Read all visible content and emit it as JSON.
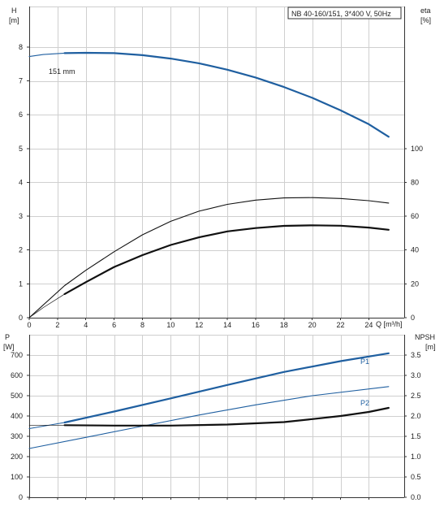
{
  "title_box": "NB 40-160/151, 3*400 V, 50Hz",
  "colors": {
    "blue": "#1f5fa0",
    "black": "#111111",
    "grid": "#cfcfcf"
  },
  "chart_data": [
    {
      "type": "line",
      "axes": {
        "y_left_label": [
          "H",
          "[m]"
        ],
        "y_right_label": [
          "eta",
          "[%]"
        ],
        "x_label": "Q [m³/h]",
        "x_ticks": [
          0,
          2,
          4,
          6,
          8,
          10,
          12,
          14,
          16,
          18,
          20,
          22,
          24
        ],
        "y_left_ticks": [
          0,
          1,
          2,
          3,
          4,
          5,
          6,
          7,
          8
        ],
        "y_right_ticks": [
          0,
          20,
          40,
          60,
          80,
          100
        ],
        "xlim": [
          0,
          26.5
        ],
        "ylim_left": [
          0,
          9.2
        ],
        "ylim_right": [
          0,
          184
        ]
      },
      "annotations": [
        {
          "text": "151 mm",
          "x": 1.5,
          "y": 7.78
        }
      ],
      "series": [
        {
          "id": "H",
          "axis": "left",
          "color": "blue",
          "style": "thick",
          "x": [
            2.5,
            4,
            6,
            8,
            10,
            12,
            14,
            16,
            18,
            20,
            22,
            24,
            25.4
          ],
          "y": [
            7.82,
            7.83,
            7.82,
            7.76,
            7.66,
            7.52,
            7.33,
            7.1,
            6.82,
            6.5,
            6.13,
            5.72,
            5.35
          ]
        },
        {
          "id": "H-extension",
          "axis": "left",
          "color": "blue",
          "style": "thin",
          "x": [
            0,
            1,
            2.5
          ],
          "y": [
            7.72,
            7.78,
            7.82
          ]
        },
        {
          "id": "eta-upper",
          "axis": "right",
          "color": "black",
          "style": "thin",
          "x": [
            0,
            2.5,
            4,
            6,
            8,
            10,
            12,
            14,
            16,
            18,
            20,
            22,
            24,
            25.4
          ],
          "y": [
            0,
            19,
            28,
            39,
            49,
            57,
            63,
            67,
            69.5,
            70.8,
            71,
            70.5,
            69.2,
            67.8
          ]
        },
        {
          "id": "eta-lower",
          "axis": "right",
          "color": "black",
          "style": "thick",
          "x": [
            2.5,
            4,
            6,
            8,
            10,
            12,
            14,
            16,
            18,
            20,
            22,
            24,
            25.4
          ],
          "y": [
            14,
            21,
            30,
            37,
            43,
            47.5,
            51,
            53,
            54.3,
            54.6,
            54.4,
            53.3,
            52
          ]
        },
        {
          "id": "eta-thin-origin",
          "axis": "right",
          "color": "black",
          "style": "hair",
          "x": [
            0,
            1,
            2.5
          ],
          "y": [
            0,
            6,
            14
          ]
        }
      ]
    },
    {
      "type": "line",
      "axes": {
        "y_left_label": [
          "P",
          "[W]"
        ],
        "y_right_label": [
          "NPSH",
          "[m]"
        ],
        "y_left_ticks": [
          0,
          100,
          200,
          300,
          400,
          500,
          600,
          700
        ],
        "y_right_ticks": [
          "0.0",
          "0.5",
          "1.0",
          "1.5",
          "2.0",
          "2.5",
          "3.0",
          "3.5"
        ],
        "ylim_left": [
          0,
          800
        ]
      },
      "series": [
        {
          "id": "P1",
          "name": "P1",
          "axis": "left",
          "color": "blue",
          "style": "thick",
          "x": [
            2.5,
            6,
            10,
            14,
            18,
            22,
            25.4
          ],
          "y": [
            368,
            422,
            487,
            553,
            617,
            670,
            709
          ]
        },
        {
          "id": "P1-extension",
          "axis": "left",
          "color": "blue",
          "style": "thin",
          "x": [
            0,
            2.5
          ],
          "y": [
            338,
            368
          ]
        },
        {
          "id": "P2",
          "name": "P2",
          "axis": "left",
          "color": "blue",
          "style": "thin",
          "x": [
            0,
            4,
            8,
            12,
            16,
            20,
            25.4
          ],
          "y": [
            240,
            295,
            350,
            405,
            455,
            500,
            545
          ]
        },
        {
          "id": "NPSH",
          "axis": "left",
          "color": "black",
          "style": "thick",
          "x": [
            2.5,
            6,
            10,
            14,
            18,
            20,
            22,
            24,
            25.4
          ],
          "y": [
            355,
            353,
            353,
            358,
            370,
            385,
            400,
            420,
            440
          ]
        },
        {
          "id": "NPSH-extension",
          "axis": "left",
          "color": "black",
          "style": "hair",
          "x": [
            0,
            2.5
          ],
          "y": [
            355,
            355
          ]
        }
      ]
    }
  ]
}
